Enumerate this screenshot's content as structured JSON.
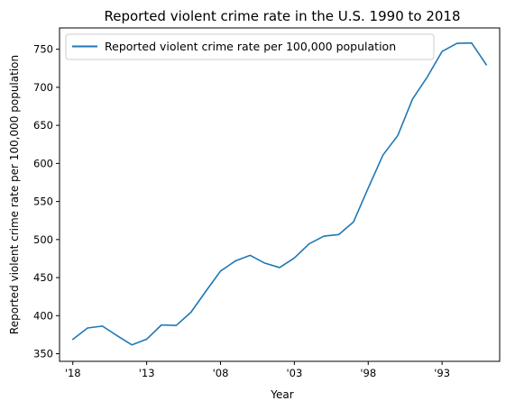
{
  "chart_data": {
    "type": "line",
    "title": "Reported violent crime rate in the U.S. 1990 to 2018",
    "xlabel": "Year",
    "ylabel": "Reported violent crime rate per 100,000 population",
    "x_direction": "descending",
    "x": [
      2018,
      2017,
      2016,
      2015,
      2014,
      2013,
      2012,
      2011,
      2010,
      2009,
      2008,
      2007,
      2006,
      2005,
      2004,
      2003,
      2002,
      2001,
      2000,
      1999,
      1998,
      1997,
      1996,
      1995,
      1994,
      1993,
      1992,
      1991,
      1990
    ],
    "x_ticks": [
      2018,
      2013,
      2008,
      2003,
      1998,
      1993
    ],
    "x_tick_labels": [
      "'18",
      "'13",
      "'08",
      "'03",
      "'98",
      "'93"
    ],
    "xlim": [
      2018.9,
      1989.1
    ],
    "y_ticks": [
      350,
      400,
      450,
      500,
      550,
      600,
      650,
      700,
      750
    ],
    "y_tick_labels": [
      "350",
      "400",
      "450",
      "500",
      "550",
      "600",
      "650",
      "700",
      "750"
    ],
    "ylim": [
      340,
      778
    ],
    "series": [
      {
        "name": "Reported violent crime rate per 100,000 population",
        "color": "#1f77b4",
        "values": [
          368.9,
          383.8,
          386.3,
          373.7,
          361.6,
          369.1,
          387.8,
          387.1,
          404.5,
          431.9,
          458.6,
          471.8,
          479.3,
          469.0,
          463.2,
          475.8,
          494.4,
          504.5,
          506.5,
          523.0,
          567.6,
          611.0,
          636.6,
          684.5,
          713.6,
          747.1,
          757.7,
          758.2,
          729.6
        ]
      }
    ],
    "legend_position": "upper-left",
    "grid": false
  }
}
